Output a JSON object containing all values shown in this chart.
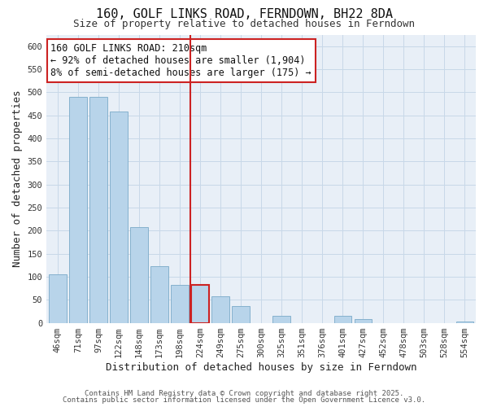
{
  "title": "160, GOLF LINKS ROAD, FERNDOWN, BH22 8DA",
  "subtitle": "Size of property relative to detached houses in Ferndown",
  "xlabel": "Distribution of detached houses by size in Ferndown",
  "ylabel": "Number of detached properties",
  "footer1": "Contains HM Land Registry data © Crown copyright and database right 2025.",
  "footer2": "Contains public sector information licensed under the Open Government Licence v3.0.",
  "bar_labels": [
    "46sqm",
    "71sqm",
    "97sqm",
    "122sqm",
    "148sqm",
    "173sqm",
    "198sqm",
    "224sqm",
    "249sqm",
    "275sqm",
    "300sqm",
    "325sqm",
    "351sqm",
    "376sqm",
    "401sqm",
    "427sqm",
    "452sqm",
    "478sqm",
    "503sqm",
    "528sqm",
    "554sqm"
  ],
  "bar_values": [
    105,
    490,
    490,
    458,
    208,
    123,
    83,
    83,
    58,
    37,
    0,
    15,
    0,
    0,
    15,
    8,
    0,
    0,
    0,
    0,
    3
  ],
  "bar_color": "#b8d4ea",
  "bar_edge_color": "#7aaac8",
  "highlight_bar_index": 7,
  "highlight_bar_color": "#cc2222",
  "vline_color": "#cc2222",
  "vline_pos": 6.5,
  "ylim": [
    0,
    625
  ],
  "yticks": [
    0,
    50,
    100,
    150,
    200,
    250,
    300,
    350,
    400,
    450,
    500,
    550,
    600
  ],
  "annotation_title": "160 GOLF LINKS ROAD: 210sqm",
  "annotation_line1": "← 92% of detached houses are smaller (1,904)",
  "annotation_line2": "8% of semi-detached houses are larger (175) →",
  "title_fontsize": 11,
  "subtitle_fontsize": 9,
  "axis_label_fontsize": 9,
  "tick_fontsize": 7.5,
  "annotation_fontsize": 8.5,
  "background_color": "#ffffff",
  "plot_bg_color": "#e8eff7",
  "grid_color": "#c8d8e8"
}
